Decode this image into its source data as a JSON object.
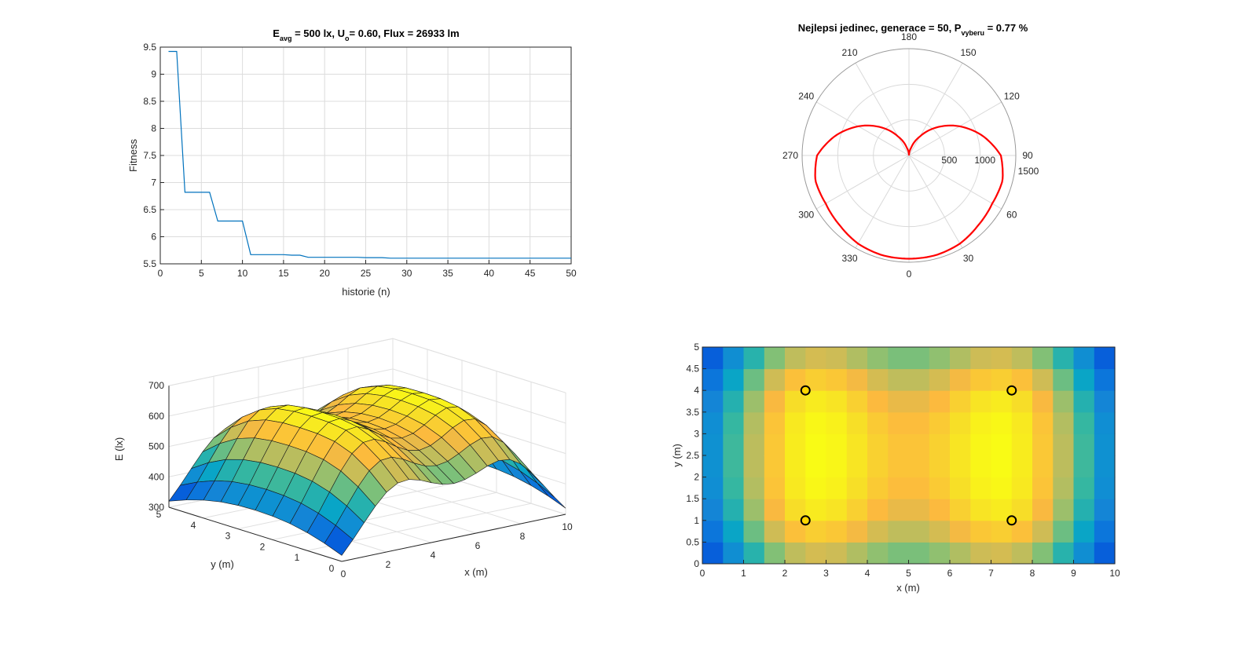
{
  "chart_data": [
    {
      "type": "line",
      "title_parts": {
        "E": "E",
        "avg": "avg",
        "mid1": " = 500 lx, U",
        "o": "o",
        "mid2": "= 0.60, Flux = 26933 lm"
      },
      "xlabel": "historie (n)",
      "ylabel": "Fitness",
      "xlim": [
        0,
        50
      ],
      "ylim": [
        5.5,
        9.5
      ],
      "xticks": [
        0,
        5,
        10,
        15,
        20,
        25,
        30,
        35,
        40,
        45,
        50
      ],
      "yticks": [
        5.5,
        6,
        6.5,
        7,
        7.5,
        8,
        8.5,
        9,
        9.5
      ],
      "grid": true,
      "color": "#0072BD",
      "series": [
        {
          "x": [
            1,
            2,
            3,
            4,
            5,
            6,
            7,
            8,
            9,
            10,
            11,
            12,
            13,
            14,
            15,
            16,
            17,
            18,
            19,
            20,
            21,
            22,
            23,
            24,
            25,
            26,
            27,
            28,
            29,
            30,
            31,
            32,
            33,
            34,
            35,
            36,
            37,
            38,
            39,
            40,
            41,
            42,
            43,
            44,
            45,
            46,
            47,
            48,
            49,
            50
          ],
          "y": [
            9.42,
            9.42,
            6.82,
            6.82,
            6.82,
            6.82,
            6.29,
            6.29,
            6.29,
            6.29,
            5.67,
            5.67,
            5.67,
            5.67,
            5.67,
            5.66,
            5.66,
            5.62,
            5.62,
            5.62,
            5.62,
            5.62,
            5.62,
            5.62,
            5.615,
            5.615,
            5.615,
            5.605,
            5.605,
            5.605,
            5.605,
            5.605,
            5.605,
            5.605,
            5.605,
            5.605,
            5.605,
            5.605,
            5.605,
            5.605,
            5.605,
            5.605,
            5.605,
            5.605,
            5.605,
            5.605,
            5.605,
            5.605,
            5.605,
            5.605
          ]
        }
      ]
    },
    {
      "type": "polar",
      "title_parts": {
        "main": "Nejlepsi jedinec, generace = 50, P",
        "sub": "vyberu",
        "end": " = 0.77 %"
      },
      "angle_labels": [
        "0",
        "30",
        "60",
        "90",
        "120",
        "150",
        "180",
        "210",
        "240",
        "270",
        "300",
        "330"
      ],
      "r_ticks": [
        500,
        1000,
        1500
      ],
      "rlim": [
        0,
        1500
      ],
      "color": "#FF0000",
      "theta_deg": [
        0,
        15,
        30,
        45,
        60,
        75,
        90,
        105,
        120,
        135,
        150,
        165,
        180
      ],
      "r": [
        1450,
        1450,
        1430,
        1380,
        1350,
        1360,
        1290,
        1070,
        820,
        560,
        310,
        110,
        0
      ]
    },
    {
      "type": "surface",
      "xlabel": "x (m)",
      "ylabel": "y (m)",
      "zlabel": "E (lx)",
      "xlim": [
        0,
        10
      ],
      "ylim": [
        0,
        5
      ],
      "zlim": [
        300,
        700
      ],
      "xticks": [
        0,
        2,
        4,
        6,
        8,
        10
      ],
      "yticks": [
        0,
        1,
        2,
        3,
        4,
        5
      ],
      "zticks": [
        300,
        400,
        500,
        600,
        700
      ],
      "grid": true,
      "luminaires": [
        [
          2.5,
          1
        ],
        [
          7.5,
          1
        ],
        [
          2.5,
          4
        ],
        [
          7.5,
          4
        ]
      ]
    },
    {
      "type": "heatmap",
      "xlabel": "x (m)",
      "ylabel": "y (m)",
      "xlim": [
        0,
        10
      ],
      "ylim": [
        0,
        5
      ],
      "xticks": [
        0,
        1,
        2,
        3,
        4,
        5,
        6,
        7,
        8,
        9,
        10
      ],
      "yticks": [
        0,
        0.5,
        1,
        1.5,
        2,
        2.5,
        3,
        3.5,
        4,
        4.5,
        5
      ],
      "cell_size_m": 0.5,
      "markers": [
        [
          2.5,
          1
        ],
        [
          7.5,
          1
        ],
        [
          2.5,
          4
        ],
        [
          7.5,
          4
        ]
      ],
      "marker_color": "#FFD700"
    }
  ]
}
